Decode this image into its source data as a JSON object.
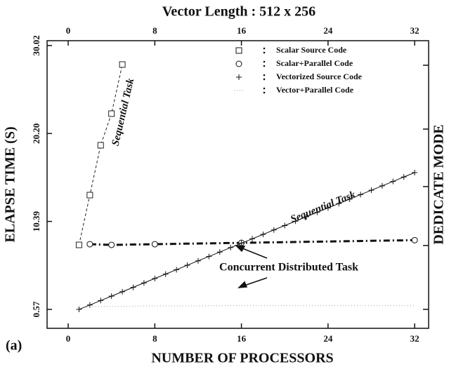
{
  "chart_data": {
    "type": "line",
    "title": "Vector Length : 512 x 256",
    "x_label": "NUMBER OF PROCESSORS",
    "y_label": "ELAPSE TIME (S)",
    "y2_label": "DEDICATE MODE",
    "xlim": [
      -1.95,
      33.29
    ],
    "xticks": [
      0,
      8,
      16,
      24,
      32
    ],
    "ylim": [
      -1.54,
      30.56
    ],
    "yticks": [
      0.57,
      10.39,
      {
        "value": 20.2,
        "label": "20.20"
      },
      30.02
    ],
    "annotations": [
      "Sequential Task",
      "Sequential Task",
      "Concurrent Distributed Task",
      "(a)"
    ],
    "series": [
      {
        "name": "Scalar Source Code",
        "color": "#222222",
        "marker": "square",
        "line": "dashed",
        "x": [
          1,
          2,
          3,
          4,
          5
        ],
        "values": [
          7.77,
          13.33,
          18.89,
          22.42,
          27.9
        ]
      },
      {
        "name": "Scalar+Parallel  Code",
        "color": "#111111",
        "marker": "circle",
        "line": "dashdot",
        "x": [
          2,
          4,
          8,
          16,
          32
        ],
        "values": [
          7.85,
          7.77,
          7.85,
          8.0,
          8.3
        ]
      },
      {
        "name": "Vectorized Source Code",
        "color": "#111111",
        "marker": "plus",
        "line": "solid",
        "x": [
          1,
          2,
          3,
          4,
          5,
          6,
          7,
          8,
          9,
          10,
          11,
          12,
          13,
          14,
          15,
          16,
          17,
          18,
          19,
          20,
          21,
          22,
          23,
          24,
          25,
          26,
          27,
          28,
          29,
          30,
          31,
          32
        ],
        "values": [
          0.57,
          1.06,
          1.56,
          2.05,
          2.54,
          3.03,
          3.53,
          4.02,
          4.51,
          5.0,
          5.5,
          5.99,
          6.48,
          6.97,
          7.47,
          7.96,
          8.45,
          8.94,
          9.44,
          9.93,
          10.42,
          10.91,
          11.41,
          11.9,
          12.39,
          12.88,
          13.38,
          13.87,
          14.36,
          14.85,
          15.35,
          15.84
        ]
      },
      {
        "name": "Vector+Parallel Code",
        "color": "#bbbbbb",
        "marker": "none",
        "line": "dotted",
        "x": [
          2,
          4,
          8,
          16,
          32
        ],
        "values": [
          0.9,
          0.9,
          0.95,
          1.0,
          1.0
        ]
      }
    ]
  }
}
